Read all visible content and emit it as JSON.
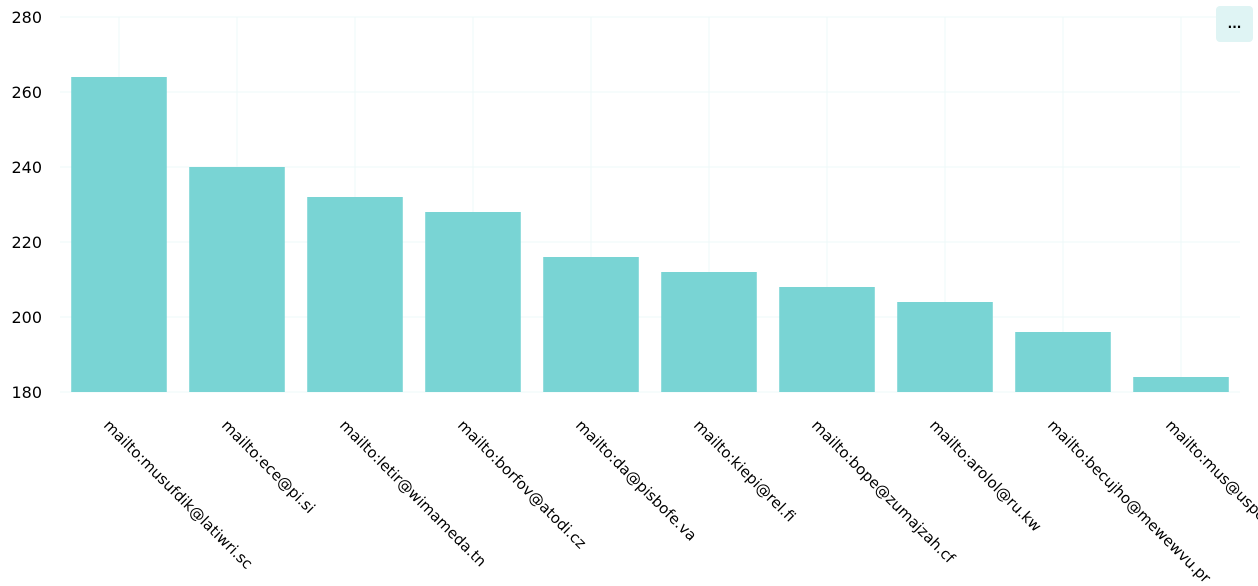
{
  "menu": {
    "label": "...",
    "background": "#dff4f4",
    "color": "#000000"
  },
  "chart_data": {
    "type": "bar",
    "categories": [
      "mailto:musufdik@latiwri.sc",
      "mailto:ece@pi.si",
      "mailto:letir@wimameda.tn",
      "mailto:borfov@atodi.cz",
      "mailto:da@pisbofe.va",
      "mailto:kiepi@rel.fi",
      "mailto:bope@zumajzah.cf",
      "mailto:arolol@ru.kw",
      "mailto:becujho@mewewvu.pr",
      "mailto:mus@uspe"
    ],
    "values": [
      264,
      240,
      232,
      228,
      216,
      212,
      208,
      204,
      196,
      184
    ],
    "ylim": [
      180,
      280
    ],
    "yticks": [
      180,
      200,
      220,
      240,
      260,
      280
    ],
    "title": "",
    "xlabel": "",
    "ylabel": "",
    "grid": true,
    "legend": "none",
    "colors": {
      "bar": "#79d4d4",
      "grid": "#eef8f8",
      "text": "#000000"
    }
  }
}
